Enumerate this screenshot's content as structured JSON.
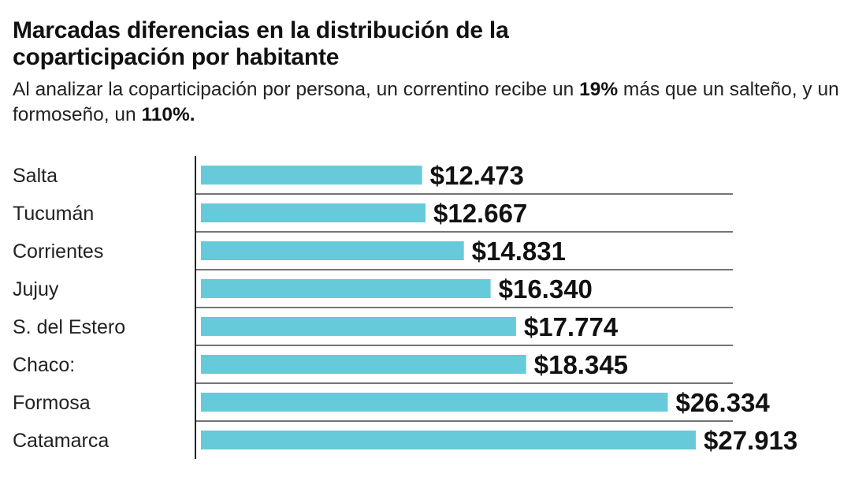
{
  "header": {
    "title_line1": "Marcadas diferencias en la distribución de la",
    "title_line2": "coparticipación por habitante",
    "subtitle_parts": [
      "Al analizar la coparticipación por persona, un correntino recibe un ",
      "19%",
      " más que un salteño, y un formoseño, un ",
      "110%."
    ]
  },
  "chart_data": {
    "type": "bar",
    "orientation": "horizontal",
    "title": "Marcadas diferencias en la distribución de la coparticipación por habitante",
    "categories": [
      "Salta",
      "Tucumán",
      "Corrientes",
      "Jujuy",
      "S. del Estero",
      "Chaco:",
      "Formosa",
      "Catamarca"
    ],
    "values": [
      12473,
      12667,
      14831,
      16340,
      17774,
      18345,
      26334,
      27913
    ],
    "value_labels": [
      "$12.473",
      "$12.667",
      "$14.831",
      "$16.340",
      "$17.774",
      "$18.345",
      "$26.334",
      "$27.913"
    ],
    "bar_color": "#67cadb",
    "grid": true,
    "legend": "none"
  }
}
